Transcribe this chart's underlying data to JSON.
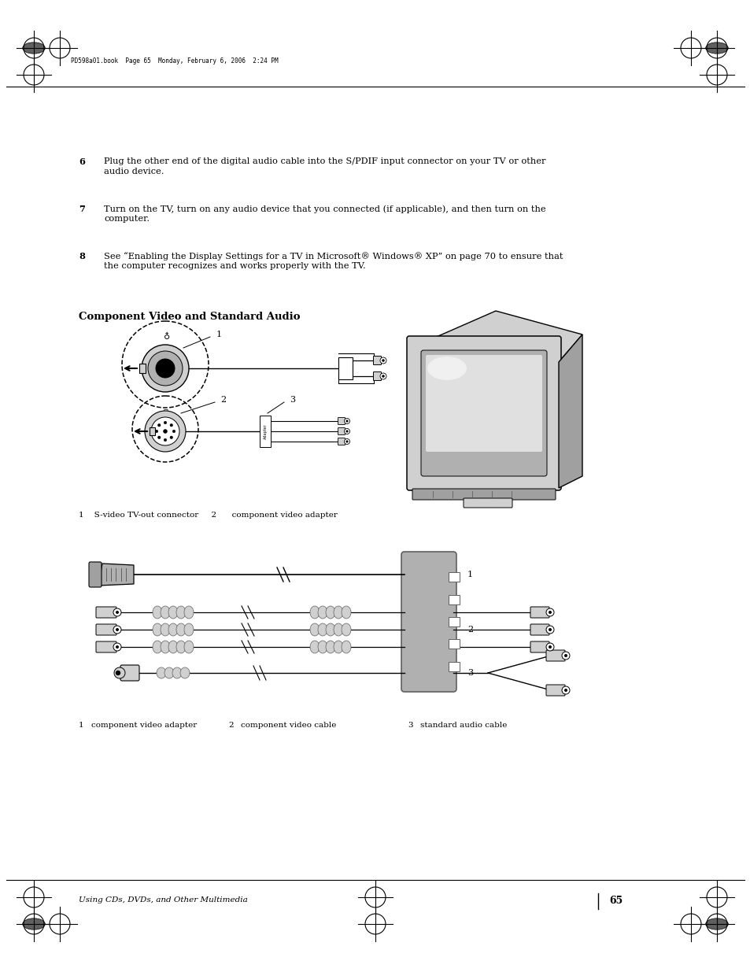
{
  "bg_color": "#ffffff",
  "page_width": 9.54,
  "page_height": 12.35,
  "header_text": "PD598a01.book  Page 65  Monday, February 6, 2006  2:24 PM",
  "footer_text": "Using CDs, DVDs, and Other Multimedia",
  "footer_page": "65",
  "step6_num": "6",
  "step6_text": "Plug the other end of the digital audio cable into the S/PDIF input connector on your TV or other\naudio device.",
  "step7_num": "7",
  "step7_text": "Turn on the TV, turn on any audio device that you connected (if applicable), and then turn on the\ncomputer.",
  "step8_num": "8",
  "step8_text": "See “Enabling the Display Settings for a TV in Microsoft® Windows® XP” on page 70 to ensure that\nthe computer recognizes and works properly with the TV.",
  "section_title": "Component Video and Standard Audio",
  "d1_label1": "1",
  "d1_label2": "2",
  "d1_label3": "3",
  "d1_caption": "1    S-video TV-out connector     2      component video adapter",
  "d2_label1": "1",
  "d2_label2": "2",
  "d2_label3": "3",
  "d2_cap1_num": "1",
  "d2_cap1_txt": "component video adapter",
  "d2_cap2_num": "2",
  "d2_cap2_txt": "component video cable",
  "d2_cap3_num": "3",
  "d2_cap3_txt": "standard audio cable",
  "text_color": "#000000",
  "lgray": "#d0d0d0",
  "mgray": "#a0a0a0",
  "dgray": "#606060",
  "cgray": "#b0b0b0",
  "sgray": "#909090"
}
